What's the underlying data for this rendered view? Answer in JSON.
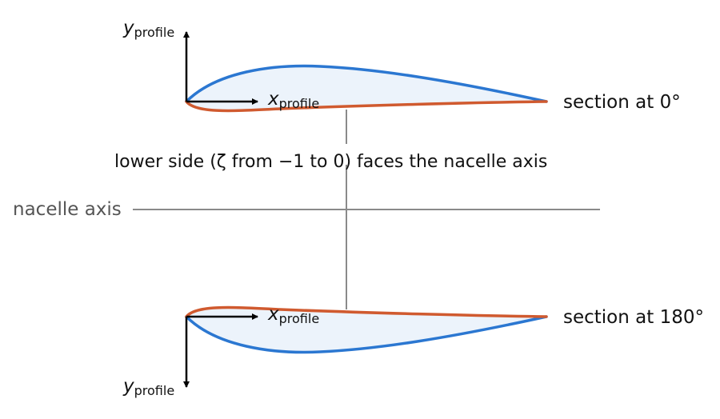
{
  "labels": {
    "y_profile_main": "y",
    "x_profile_main": "x",
    "profile_subscript": "profile",
    "section_top": "section at 0°",
    "section_bottom": "section at 180°",
    "caption": "lower side (ζ from −1 to 0) faces the nacelle axis",
    "nacelle_axis": "nacelle axis"
  },
  "colors": {
    "upper_side": "#2b77d1",
    "lower_side": "#d05a2f",
    "fill": "#ecf3fb",
    "axis_line": "#8a8a8a",
    "arrow": "#000000"
  }
}
